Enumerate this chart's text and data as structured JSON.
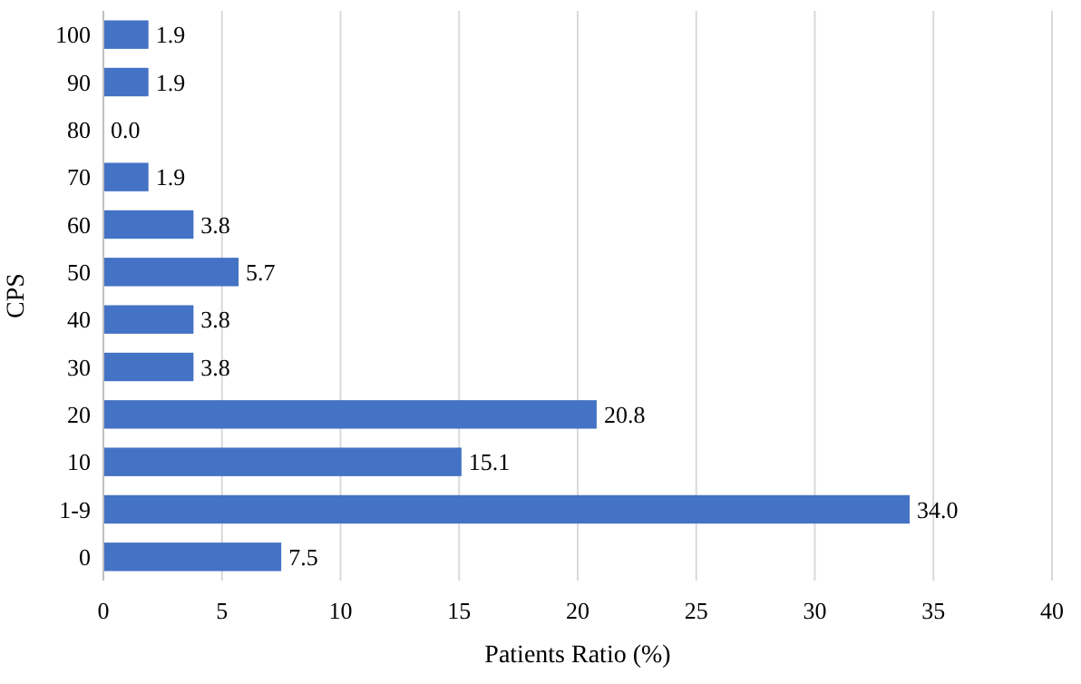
{
  "chart_data": {
    "type": "bar",
    "orientation": "horizontal",
    "xlabel": "Patients Ratio (%)",
    "ylabel": "CPS",
    "categories": [
      "100",
      "90",
      "80",
      "70",
      "60",
      "50",
      "40",
      "30",
      "20",
      "10",
      "1-9",
      "0"
    ],
    "values": [
      1.9,
      1.9,
      0.0,
      1.9,
      3.8,
      5.7,
      3.8,
      3.8,
      20.8,
      15.1,
      34.0,
      7.5
    ],
    "value_labels": [
      "1.9",
      "1.9",
      "0.0",
      "1.9",
      "3.8",
      "5.7",
      "3.8",
      "3.8",
      "20.8",
      "15.1",
      "34.0",
      "7.5"
    ],
    "color": "#4472c4",
    "xlim": [
      0,
      40
    ],
    "xticks": [
      0,
      5,
      10,
      15,
      20,
      25,
      30,
      35,
      40
    ],
    "grid": "x"
  }
}
